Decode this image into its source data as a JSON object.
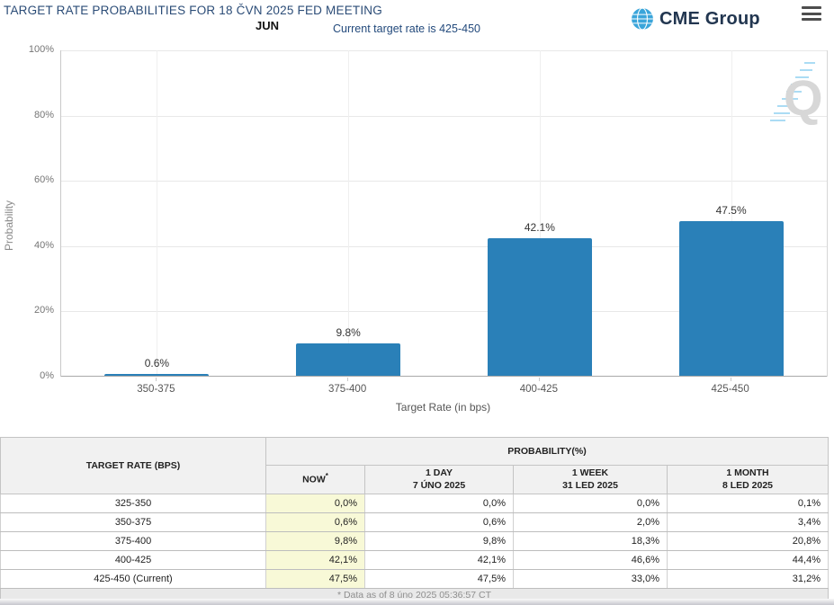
{
  "header": {
    "title": "TARGET RATE PROBABILITIES FOR 18 ČVN 2025 FED MEETING",
    "month_label": "JUN",
    "current_rate_note": "Current target rate is 425-450",
    "logo_text": "CME Group"
  },
  "chart_data": {
    "type": "bar",
    "categories": [
      "350-375",
      "375-400",
      "400-425",
      "425-450"
    ],
    "values": [
      0.6,
      9.8,
      42.1,
      47.5
    ],
    "value_labels": [
      "0.6%",
      "9.8%",
      "42.1%",
      "47.5%"
    ],
    "xlabel": "Target Rate (in bps)",
    "ylabel": "Probability",
    "y_ticks": [
      "0%",
      "20%",
      "40%",
      "60%",
      "80%",
      "100%"
    ],
    "ylim": [
      0,
      100
    ],
    "grid": true,
    "legend": "none",
    "bar_color": "#2a80b8",
    "watermark_letter": "Q"
  },
  "table": {
    "headers": {
      "target_rate": "TARGET RATE (BPS)",
      "probability_group": "PROBABILITY(%)",
      "now": "NOW",
      "now_note_mark": "*",
      "day1_line1": "1 DAY",
      "day1_line2": "7 ÚNO 2025",
      "week1_line1": "1 WEEK",
      "week1_line2": "31 LED 2025",
      "month1_line1": "1 MONTH",
      "month1_line2": "8 LED 2025"
    },
    "rows": [
      {
        "label": "325-350",
        "now": "0,0%",
        "day": "0,0%",
        "week": "0,0%",
        "month": "0,1%"
      },
      {
        "label": "350-375",
        "now": "0,6%",
        "day": "0,6%",
        "week": "2,0%",
        "month": "3,4%"
      },
      {
        "label": "375-400",
        "now": "9,8%",
        "day": "9,8%",
        "week": "18,3%",
        "month": "20,8%"
      },
      {
        "label": "400-425",
        "now": "42,1%",
        "day": "42,1%",
        "week": "46,6%",
        "month": "44,4%"
      },
      {
        "label": "425-450 (Current)",
        "now": "47,5%",
        "day": "47,5%",
        "week": "33,0%",
        "month": "31,2%"
      }
    ],
    "footnote": "* Data as of 8 úno 2025 05:36:57 CT"
  },
  "colors": {
    "bar": "#2a80b8",
    "title_navy": "#2b4c77",
    "now_column_bg": "#f8f9d7"
  }
}
